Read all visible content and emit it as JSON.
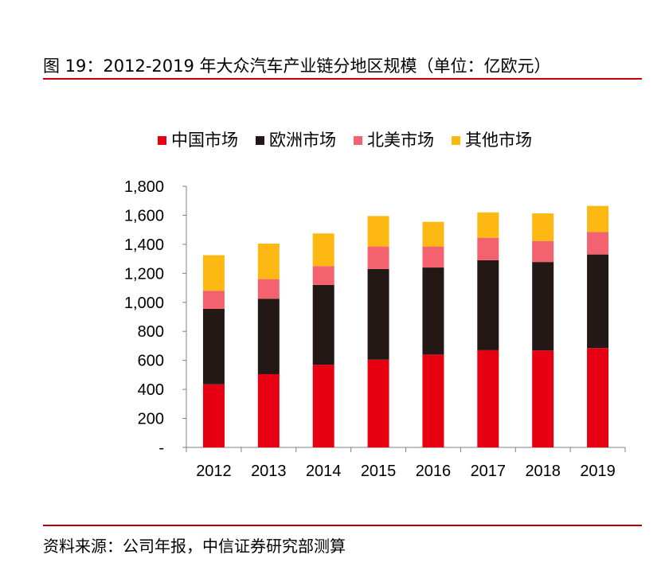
{
  "figure": {
    "title": "图 19：2012-2019 年大众汽车产业链分地区规模（单位：亿欧元）",
    "source": "资料来源：公司年报，中信证券研究部测算"
  },
  "chart_data": {
    "type": "bar",
    "stacked": true,
    "categories": [
      "2012",
      "2013",
      "2014",
      "2015",
      "2016",
      "2017",
      "2018",
      "2019"
    ],
    "series": [
      {
        "name": "中国市场",
        "color": "#e60012",
        "values": [
          435,
          505,
          570,
          605,
          640,
          670,
          668,
          685
        ]
      },
      {
        "name": "欧洲市场",
        "color": "#231815",
        "values": [
          520,
          520,
          550,
          625,
          600,
          620,
          610,
          645
        ]
      },
      {
        "name": "北美市场",
        "color": "#f4616f",
        "values": [
          125,
          135,
          130,
          155,
          145,
          155,
          145,
          155
        ]
      },
      {
        "name": "其他市场",
        "color": "#fdb813",
        "values": [
          245,
          245,
          225,
          210,
          170,
          175,
          190,
          180
        ]
      }
    ],
    "ylim": [
      0,
      1800
    ],
    "yticks": [
      0,
      200,
      400,
      600,
      800,
      1000,
      1200,
      1400,
      1600,
      1800
    ],
    "ytick_labels": [
      "-",
      "200",
      "400",
      "600",
      "800",
      "1,000",
      "1,200",
      "1,400",
      "1,600",
      "1,800"
    ],
    "legend_position": "top",
    "grid": false
  }
}
